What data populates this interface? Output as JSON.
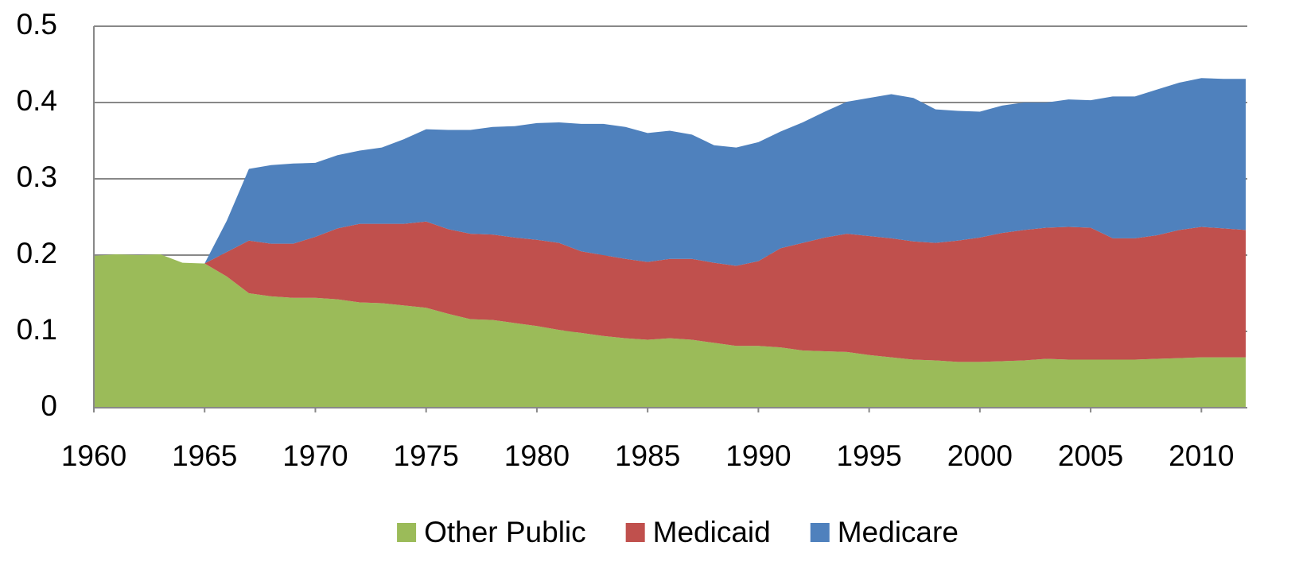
{
  "chart_data": {
    "type": "stacked-area",
    "x": [
      1960,
      1961,
      1962,
      1963,
      1964,
      1965,
      1966,
      1967,
      1968,
      1969,
      1970,
      1971,
      1972,
      1973,
      1974,
      1975,
      1976,
      1977,
      1978,
      1979,
      1980,
      1981,
      1982,
      1983,
      1984,
      1985,
      1986,
      1987,
      1988,
      1989,
      1990,
      1991,
      1992,
      1993,
      1994,
      1995,
      1996,
      1997,
      1998,
      1999,
      2000,
      2001,
      2002,
      2003,
      2004,
      2005,
      2006,
      2007,
      2008,
      2009,
      2010,
      2011,
      2012
    ],
    "xlim": [
      1960,
      2012
    ],
    "xticks": [
      1960,
      1965,
      1970,
      1975,
      1980,
      1985,
      1990,
      1995,
      2000,
      2005,
      2010
    ],
    "ylim": [
      0,
      0.5
    ],
    "yticks": [
      0,
      0.1,
      0.2,
      0.3,
      0.4,
      0.5
    ],
    "grid": true,
    "legend": "bottom",
    "series": [
      {
        "name": "Other Public",
        "color": "#9bbb59",
        "values": [
          0.199,
          0.201,
          0.2,
          0.201,
          0.19,
          0.189,
          0.172,
          0.15,
          0.146,
          0.144,
          0.144,
          0.142,
          0.138,
          0.137,
          0.134,
          0.131,
          0.123,
          0.116,
          0.115,
          0.111,
          0.107,
          0.102,
          0.098,
          0.094,
          0.091,
          0.089,
          0.091,
          0.089,
          0.085,
          0.081,
          0.081,
          0.079,
          0.075,
          0.074,
          0.073,
          0.069,
          0.066,
          0.063,
          0.062,
          0.06,
          0.06,
          0.061,
          0.062,
          0.064,
          0.063,
          0.063,
          0.063,
          0.063,
          0.064,
          0.065,
          0.066,
          0.066,
          0.066
        ]
      },
      {
        "name": "Medicaid",
        "color": "#c0504d",
        "values": [
          0,
          0,
          0,
          0,
          0,
          0,
          0.032,
          0.069,
          0.069,
          0.071,
          0.08,
          0.093,
          0.103,
          0.104,
          0.107,
          0.113,
          0.111,
          0.112,
          0.112,
          0.112,
          0.113,
          0.114,
          0.107,
          0.106,
          0.104,
          0.102,
          0.104,
          0.106,
          0.105,
          0.105,
          0.111,
          0.13,
          0.141,
          0.149,
          0.155,
          0.156,
          0.156,
          0.155,
          0.154,
          0.159,
          0.163,
          0.168,
          0.171,
          0.172,
          0.174,
          0.173,
          0.159,
          0.159,
          0.162,
          0.168,
          0.171,
          0.169,
          0.167
        ]
      },
      {
        "name": "Medicare",
        "color": "#4f81bd",
        "values": [
          0,
          0,
          0,
          0,
          0,
          0,
          0.041,
          0.094,
          0.103,
          0.105,
          0.097,
          0.096,
          0.096,
          0.1,
          0.111,
          0.121,
          0.13,
          0.136,
          0.141,
          0.146,
          0.153,
          0.158,
          0.167,
          0.172,
          0.173,
          0.169,
          0.168,
          0.163,
          0.154,
          0.155,
          0.156,
          0.153,
          0.158,
          0.165,
          0.173,
          0.181,
          0.189,
          0.188,
          0.175,
          0.17,
          0.165,
          0.167,
          0.167,
          0.164,
          0.167,
          0.167,
          0.186,
          0.186,
          0.191,
          0.193,
          0.195,
          0.196,
          0.198
        ]
      }
    ]
  }
}
